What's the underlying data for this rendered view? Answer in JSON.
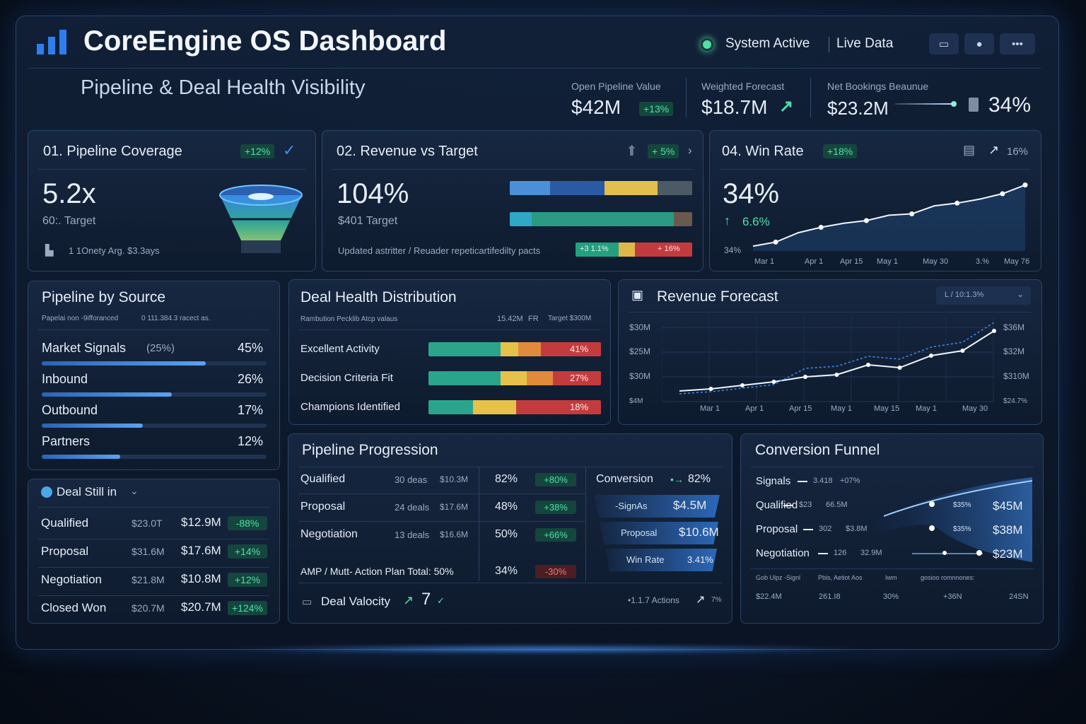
{
  "header": {
    "title": "CoreEngine OS Dashboard",
    "status_label": "System Active",
    "live_label": "Live Data",
    "subtitle": "Pipeline & Deal Health Visibility"
  },
  "kpis": [
    {
      "label": "Open Pipeline Value",
      "value": "$42M",
      "badge": "+13%"
    },
    {
      "label": "Weighted Forecast",
      "value": "$18.7M",
      "arrow": "↗"
    },
    {
      "label": "Net Bookings Beaunue",
      "value": "$23.2M",
      "extra": "34%"
    }
  ],
  "coverage": {
    "title": "01. Pipeline Coverage",
    "badge": "+12%",
    "value": "5.2x",
    "sub": "60:. Target",
    "note": "1 1Onety Arg. $3.3ays"
  },
  "revenue": {
    "title": "02. Revenue vs Target",
    "badge": "+ 5%",
    "value": "104%",
    "sub": "$401 Target",
    "note": "Updated astritter / Reuader repeticartifedilty pacts",
    "seg_left": "+3 1.1%",
    "seg_right": "+ 16%"
  },
  "winrate": {
    "title": "04. Win Rate",
    "badge": "+18%",
    "trend": "16%",
    "value": "34%",
    "delta": "6.6%",
    "ylabel": "34%",
    "xlabels": [
      "Mar 1",
      "Apr 1",
      "Apr 15",
      "May 1",
      "May 30",
      "3.%",
      "May 76"
    ],
    "points": [
      0.02,
      0.08,
      0.22,
      0.3,
      0.36,
      0.4,
      0.48,
      0.5,
      0.62,
      0.66,
      0.72,
      0.8,
      0.93
    ]
  },
  "source": {
    "title": "Pipeline by Source",
    "sub_left": "Papelai non -9ifforanced",
    "sub_right": "0 111.384.3 racect as.",
    "items": [
      {
        "label": "Market Signals",
        "paren": "(25%)",
        "pct": "45%",
        "fill": 0.73
      },
      {
        "label": "Inbound",
        "paren": "",
        "pct": "26%",
        "fill": 0.58
      },
      {
        "label": "Outbound",
        "paren": "",
        "pct": "17%",
        "fill": 0.45
      },
      {
        "label": "Partners",
        "paren": "",
        "pct": "12%",
        "fill": 0.35
      }
    ]
  },
  "health": {
    "title": "Deal Health Distribution",
    "sub_left": "Rambution Pecklib Atcp valaus",
    "sub_mid": "15.42M",
    "sub_mid2": "FR",
    "sub_right": "Target  $300M",
    "rows": [
      {
        "label": "Excellent Activity",
        "pct": "41%"
      },
      {
        "label": "Decision Criteria Fit",
        "pct": "27%"
      },
      {
        "label": "Champions Identified",
        "pct": "18%"
      }
    ]
  },
  "forecast": {
    "title": "Revenue Forecast",
    "dropdown": "L / 10:1.3%",
    "y_left": [
      "$30M",
      "$25M",
      "$30M",
      "$4M"
    ],
    "y_right": [
      "$36M",
      "$32M",
      "$310M",
      "$24.7%"
    ],
    "xlabels": [
      "Mar 1",
      "Apr 1",
      "Apr 15",
      "May 1",
      "May 15",
      "May 1",
      "May 30"
    ],
    "points": [
      0.05,
      0.08,
      0.13,
      0.18,
      0.25,
      0.28,
      0.42,
      0.38,
      0.55,
      0.62,
      0.9
    ]
  },
  "stages": {
    "title": "Deal Still in",
    "rows": [
      {
        "label": "Qualified",
        "a": "$23.0T",
        "b": "$12.9M",
        "c": "-88%",
        "red": false
      },
      {
        "label": "Proposal",
        "a": "$31.6M",
        "b": "$17.6M",
        "c": "+14%",
        "red": false
      },
      {
        "label": "Negotiation",
        "a": "$21.8M",
        "b": "$10.8M",
        "c": "+12%",
        "red": false
      },
      {
        "label": "Closed Won",
        "a": "$20.7M",
        "b": "$20.7M",
        "c": "+124%",
        "red": false
      }
    ]
  },
  "progression": {
    "title": "Pipeline Progression",
    "rows": [
      {
        "label": "Qualified",
        "deals": "30 deas",
        "amt": "$10.3M",
        "pct": "82%",
        "chg": "+80%",
        "red": false
      },
      {
        "label": "Proposal",
        "deals": "24 deals",
        "amt": "$17.6M",
        "pct": "48%",
        "chg": "+38%",
        "red": false
      },
      {
        "label": "Negotiation",
        "deals": "13 deals",
        "amt": "$16.6M",
        "pct": "50%",
        "chg": "+66%",
        "red": false
      },
      {
        "label": "AMP / Mutt- Action Plan Total: 50%",
        "deals": "",
        "amt": "",
        "pct": "34%",
        "chg": "-30%",
        "red": true
      }
    ],
    "conv_label": "Conversion",
    "conv_pct": "82%",
    "conv_rows": [
      {
        "label": "-SignAs",
        "value": "$4.5M"
      },
      {
        "label": "Proposal",
        "value": "$10.6M"
      },
      {
        "label": "Win Rate",
        "value": "3.41%"
      }
    ],
    "velocity_label": "Deal Valocity",
    "velocity_value": "7",
    "actions": "•1.1.7 Actions",
    "actions_pct": "7%"
  },
  "funnel": {
    "title": "Conversion Funnel",
    "rows": [
      {
        "label": "Signals",
        "a": "3.418",
        "b": "+07%",
        "c": "",
        "d": ""
      },
      {
        "label": "Qualified",
        "a": "$23",
        "b": "66.5M",
        "c": "$35%",
        "d": "$45M"
      },
      {
        "label": "Proposal",
        "a": "302",
        "b": "$3.8M",
        "c": "$35%",
        "d": "$38M"
      },
      {
        "label": "Negotiation",
        "a": "126",
        "b": "32.9M",
        "c": "",
        "d": "$23M"
      }
    ],
    "foot_top": [
      "Gob Ulpz -Signl",
      "Pbis, Aetiot Aos",
      "Iwm",
      "gosioo romnnones:"
    ],
    "foot": [
      "$22.4M",
      "261.I8",
      "30%",
      "+36N",
      "24SN"
    ]
  },
  "colors": {
    "accent": "#3f8ef0",
    "green": "#4fe0a8",
    "red": "#e05a5a",
    "teal": "#2aa58c",
    "yellow": "#e6c24a"
  }
}
